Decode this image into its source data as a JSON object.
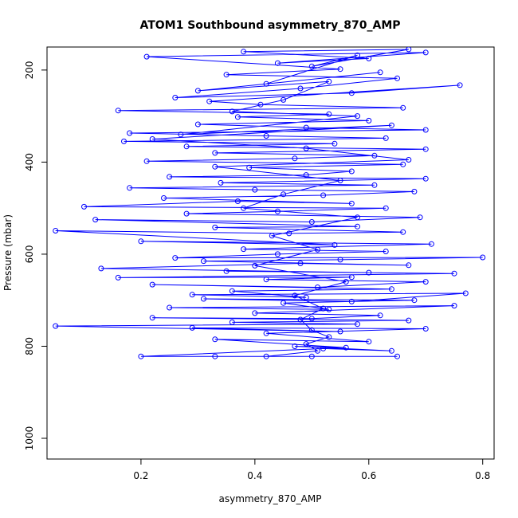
{
  "chart_data": {
    "type": "line",
    "markers": "open-circle",
    "title": "ATOM1 Southbound asymmetry_870_AMP",
    "xlabel": "asymmetry_870_AMP",
    "ylabel": "Pressure (mbar)",
    "xlim": [
      0.035,
      0.82
    ],
    "ylim": [
      1045,
      150
    ],
    "y_inverted": true,
    "x_ticks": [
      0.2,
      0.4,
      0.6,
      0.8
    ],
    "y_ticks": [
      200,
      400,
      600,
      800,
      1000
    ],
    "grid": false,
    "legend": "none",
    "series_color": "#0000ff",
    "series": [
      {
        "points": [
          [
            0.65,
            822
          ],
          [
            0.5,
            822
          ],
          [
            0.33,
            822
          ],
          [
            0.2,
            822
          ],
          [
            0.52,
            805
          ],
          [
            0.64,
            810
          ],
          [
            0.47,
            800
          ],
          [
            0.56,
            803
          ],
          [
            0.33,
            785
          ],
          [
            0.6,
            790
          ],
          [
            0.42,
            772
          ],
          [
            0.7,
            762
          ],
          [
            0.29,
            760
          ],
          [
            0.55,
            768
          ],
          [
            0.05,
            756
          ],
          [
            0.58,
            752
          ],
          [
            0.36,
            748
          ],
          [
            0.67,
            744
          ],
          [
            0.22,
            738
          ],
          [
            0.5,
            740
          ],
          [
            0.62,
            733
          ],
          [
            0.4,
            728
          ],
          [
            0.75,
            712
          ],
          [
            0.25,
            716
          ],
          [
            0.53,
            720
          ],
          [
            0.45,
            706
          ],
          [
            0.68,
            700
          ],
          [
            0.31,
            697
          ],
          [
            0.57,
            703
          ],
          [
            0.77,
            685
          ],
          [
            0.29,
            688
          ],
          [
            0.49,
            694
          ],
          [
            0.36,
            680
          ],
          [
            0.64,
            676
          ],
          [
            0.22,
            666
          ],
          [
            0.51,
            672
          ],
          [
            0.7,
            660
          ],
          [
            0.42,
            655
          ],
          [
            0.57,
            650
          ],
          [
            0.16,
            651
          ],
          [
            0.75,
            642
          ],
          [
            0.35,
            637
          ],
          [
            0.6,
            640
          ],
          [
            0.13,
            631
          ],
          [
            0.48,
            620
          ],
          [
            0.67,
            624
          ],
          [
            0.31,
            615
          ],
          [
            0.55,
            612
          ],
          [
            0.8,
            607
          ],
          [
            0.26,
            608
          ],
          [
            0.44,
            600
          ],
          [
            0.63,
            594
          ],
          [
            0.38,
            589
          ],
          [
            0.71,
            578
          ],
          [
            0.2,
            572
          ],
          [
            0.54,
            580
          ],
          [
            0.05,
            549
          ],
          [
            0.46,
            555
          ],
          [
            0.66,
            552
          ],
          [
            0.33,
            542
          ],
          [
            0.58,
            540
          ],
          [
            0.12,
            525
          ],
          [
            0.5,
            530
          ],
          [
            0.69,
            520
          ],
          [
            0.28,
            512
          ],
          [
            0.44,
            507
          ],
          [
            0.63,
            500
          ],
          [
            0.1,
            497
          ],
          [
            0.37,
            485
          ],
          [
            0.57,
            490
          ],
          [
            0.24,
            478
          ],
          [
            0.52,
            472
          ],
          [
            0.68,
            464
          ],
          [
            0.4,
            460
          ],
          [
            0.18,
            456
          ],
          [
            0.61,
            450
          ],
          [
            0.34,
            445
          ],
          [
            0.7,
            436
          ],
          [
            0.25,
            432
          ],
          [
            0.49,
            428
          ],
          [
            0.57,
            420
          ],
          [
            0.39,
            412
          ],
          [
            0.66,
            405
          ],
          [
            0.21,
            398
          ],
          [
            0.47,
            392
          ],
          [
            0.61,
            386
          ],
          [
            0.33,
            380
          ],
          [
            0.7,
            372
          ],
          [
            0.28,
            366
          ],
          [
            0.54,
            360
          ],
          [
            0.17,
            355
          ],
          [
            0.63,
            348
          ],
          [
            0.42,
            343
          ],
          [
            0.18,
            337
          ],
          [
            0.7,
            330
          ],
          [
            0.49,
            325
          ],
          [
            0.3,
            318
          ],
          [
            0.6,
            310
          ],
          [
            0.37,
            302
          ],
          [
            0.53,
            296
          ],
          [
            0.16,
            288
          ],
          [
            0.66,
            282
          ],
          [
            0.41,
            275
          ],
          [
            0.32,
            268
          ],
          [
            0.76,
            233
          ],
          [
            0.57,
            250
          ],
          [
            0.26,
            260
          ],
          [
            0.48,
            240
          ],
          [
            0.65,
            218
          ],
          [
            0.35,
            210
          ],
          [
            0.55,
            198
          ],
          [
            0.21,
            171
          ],
          [
            0.7,
            162
          ],
          [
            0.44,
            185
          ],
          [
            0.6,
            175
          ],
          [
            0.38,
            160
          ],
          [
            0.67,
            155
          ],
          [
            0.5,
            192
          ],
          [
            0.58,
            168
          ],
          [
            0.42,
            230
          ],
          [
            0.62,
            205
          ],
          [
            0.3,
            245
          ],
          [
            0.53,
            225
          ],
          [
            0.45,
            265
          ],
          [
            0.36,
            290
          ],
          [
            0.58,
            300
          ],
          [
            0.27,
            340
          ],
          [
            0.64,
            320
          ],
          [
            0.22,
            350
          ],
          [
            0.49,
            370
          ],
          [
            0.67,
            395
          ],
          [
            0.33,
            410
          ],
          [
            0.55,
            440
          ],
          [
            0.45,
            470
          ],
          [
            0.38,
            500
          ],
          [
            0.58,
            520
          ],
          [
            0.43,
            560
          ],
          [
            0.51,
            590
          ],
          [
            0.4,
            625
          ],
          [
            0.56,
            660
          ],
          [
            0.47,
            690
          ],
          [
            0.52,
            718
          ],
          [
            0.48,
            742
          ],
          [
            0.5,
            765
          ],
          [
            0.53,
            780
          ],
          [
            0.49,
            795
          ],
          [
            0.51,
            810
          ],
          [
            0.42,
            822
          ]
        ]
      }
    ]
  }
}
